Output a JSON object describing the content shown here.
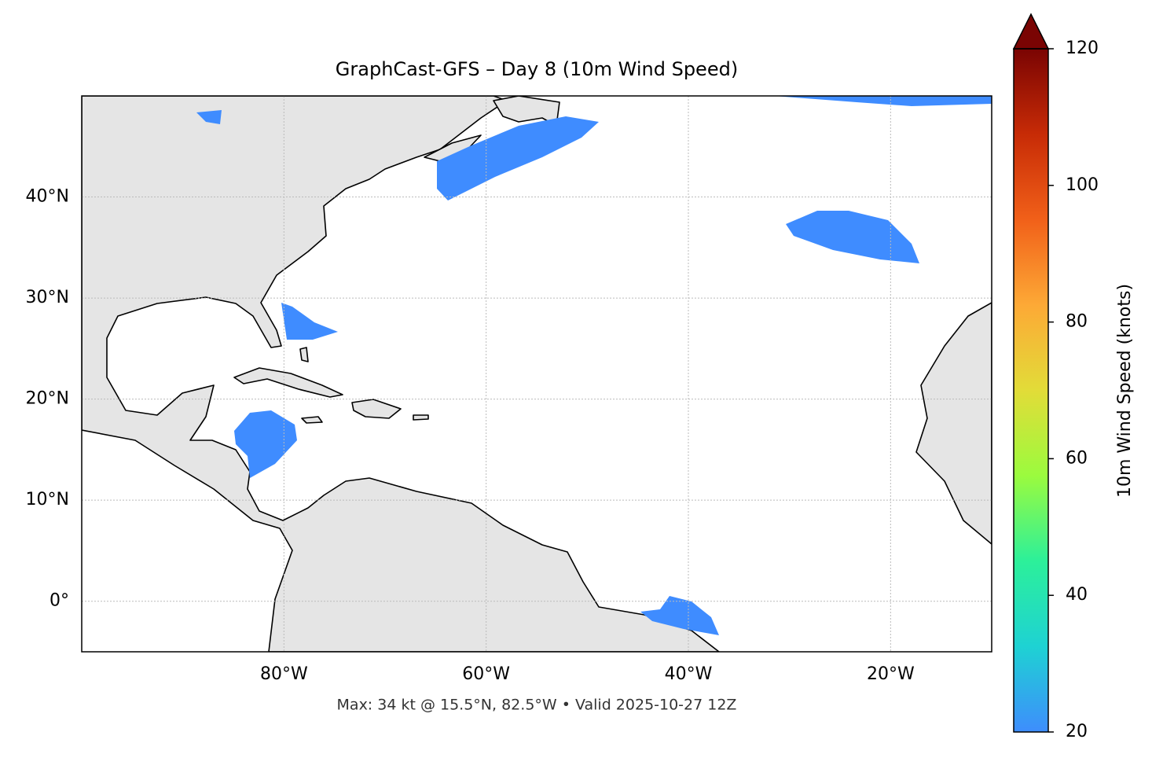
{
  "chart_data": {
    "type": "map",
    "title": "GraphCast-GFS – Day 8 (10m Wind Speed)",
    "footer": "Max: 34 kt @ 15.5°N, 82.5°W • Valid 2025-10-27 12Z",
    "xlim": [
      -100,
      -10
    ],
    "ylim": [
      -5,
      50
    ],
    "xticks": [
      {
        "value": -80,
        "label": "80°W"
      },
      {
        "value": -60,
        "label": "60°W"
      },
      {
        "value": -40,
        "label": "40°W"
      },
      {
        "value": -20,
        "label": "20°W"
      }
    ],
    "yticks": [
      {
        "value": 0,
        "label": "0°"
      },
      {
        "value": 10,
        "label": "10°N"
      },
      {
        "value": 20,
        "label": "20°N"
      },
      {
        "value": 30,
        "label": "30°N"
      },
      {
        "value": 40,
        "label": "40°N"
      }
    ],
    "grid": true,
    "colorbar": {
      "label": "10m Wind Speed (knots)",
      "lim": [
        20,
        120
      ],
      "ticks": [
        20,
        40,
        60,
        80,
        100,
        120
      ],
      "colors": [
        "#3e8dfd",
        "#1ed2d3",
        "#2cf09a",
        "#9bfb3e",
        "#e2dc38",
        "#fda936",
        "#f16019",
        "#c72b06",
        "#7a0403"
      ]
    }
  }
}
